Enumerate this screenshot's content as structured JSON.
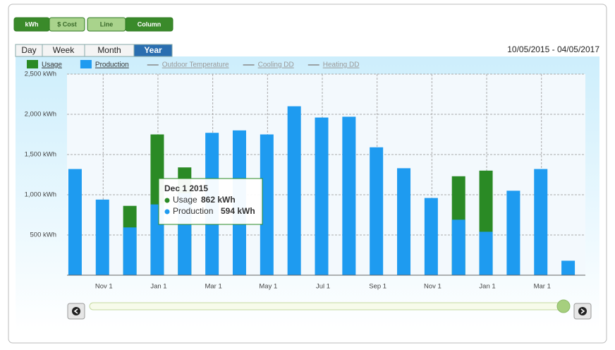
{
  "toolbar": {
    "units": [
      "kWh",
      "$ Cost"
    ],
    "views": [
      "Line",
      "Column"
    ]
  },
  "tabs": [
    "Day",
    "Week",
    "Month",
    "Year"
  ],
  "date_range": "10/05/2015 - 04/05/2017",
  "chart_data": {
    "type": "bar",
    "categories": [
      null,
      "Nov 1",
      null,
      "Jan 1",
      null,
      "Mar 1",
      null,
      "May 1",
      null,
      "Jul 1",
      null,
      "Sep 1",
      null,
      "Nov 1",
      null,
      "Jan 1",
      null,
      "Mar 1",
      null
    ],
    "series": [
      {
        "name": "Usage",
        "color": "#2a8a25",
        "values": [
          null,
          null,
          862,
          1750,
          1340,
          null,
          null,
          null,
          null,
          null,
          null,
          null,
          null,
          null,
          1230,
          1300,
          null,
          null,
          null
        ]
      },
      {
        "name": "Production",
        "color": "#1e9bf0",
        "values": [
          1320,
          940,
          594,
          880,
          1020,
          1770,
          1800,
          1750,
          2100,
          1960,
          1970,
          1590,
          1330,
          960,
          690,
          540,
          1050,
          1320,
          180
        ]
      }
    ],
    "legend_lines": [
      {
        "name": "Outdoor Temperature",
        "color": "#888"
      },
      {
        "name": "Cooling DD",
        "color": "#888"
      },
      {
        "name": "Heating DD",
        "color": "#888"
      }
    ],
    "ylim": [
      0,
      2500
    ],
    "yticks": [
      {
        "value": 500,
        "label": "500 kWh"
      },
      {
        "value": 1000,
        "label": "1,000 kWh"
      },
      {
        "value": 1500,
        "label": "1,500 kWh"
      },
      {
        "value": 2000,
        "label": "2,000 kWh"
      },
      {
        "value": 2500,
        "label": "2,500 kWh"
      }
    ],
    "grid": true,
    "tooltip": {
      "title": "Dec 1 2015",
      "labels": [
        "862 kWh",
        "594 kWh"
      ]
    }
  }
}
